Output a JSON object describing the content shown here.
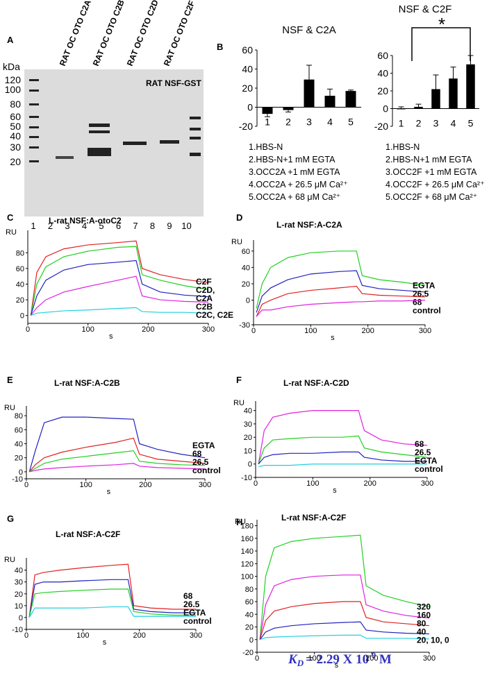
{
  "gel": {
    "panel": "A",
    "unit": "kDa",
    "title": "RAT NSF-GST",
    "lane_labels": [
      "RAT OC OTO C2A",
      "RAT OC OTO C2B",
      "RAT OC OTO C2D",
      "RAT OC OTO C2F"
    ],
    "markers": [
      "120",
      "100",
      "80",
      "60",
      "50",
      "40",
      "30",
      "20"
    ],
    "lanes": [
      "1",
      "2",
      "3",
      "4",
      "5",
      "6",
      "7",
      "8",
      "9",
      "10"
    ]
  },
  "chart_data": [
    {
      "type": "bar",
      "panel": "B",
      "title": "NSF & C2A",
      "categories": [
        "1",
        "2",
        "3",
        "4",
        "5"
      ],
      "values": [
        -7,
        -3,
        29,
        12,
        17
      ],
      "errors": [
        3,
        2,
        15,
        7,
        1
      ],
      "color": "#000000",
      "ylim": [
        -20,
        60
      ],
      "yticks": [
        -20,
        0,
        20,
        40,
        60
      ],
      "notes": [
        "1.HBS-N",
        "2.HBS-N+1 mM EGTA",
        "3.OCC2A +1 mM EGTA",
        "4.OCC2A + 26.5 μM Ca²⁺",
        "5.OCC2A + 68 μM Ca²⁺"
      ]
    },
    {
      "type": "bar",
      "title": "NSF & C2F",
      "categories": [
        "1",
        "2",
        "3",
        "4",
        "5"
      ],
      "values": [
        0,
        2,
        22,
        34,
        50
      ],
      "errors": [
        2,
        3,
        16,
        13,
        10
      ],
      "color": "#000000",
      "ylim": [
        -20,
        60
      ],
      "yticks": [
        -20,
        0,
        20,
        40,
        60
      ],
      "annotation": "*",
      "notes": [
        "1.HBS-N",
        "2.HBS-N+1 mM EGTA",
        "3.OCC2F +1 mM EGTA",
        "4.OCC2F + 26.5 μM Ca²⁺",
        "5.OCC2F + 68 μM Ca²⁺"
      ]
    },
    {
      "type": "line",
      "panel": "C",
      "title": "L-rat NSF:A-otoC2",
      "y_label": "RU",
      "x_label": "s",
      "x": [
        5,
        15,
        30,
        60,
        100,
        150,
        180,
        190,
        220,
        260,
        300
      ],
      "xlim": [
        0,
        300
      ],
      "xticks": [
        0,
        100,
        200,
        300
      ],
      "ylim": [
        -10,
        105
      ],
      "yticks": [
        0,
        20,
        40,
        60,
        80
      ],
      "series": [
        {
          "name": "C2F",
          "color": "#e02020",
          "values": [
            0,
            55,
            75,
            85,
            90,
            93,
            95,
            60,
            52,
            46,
            42
          ]
        },
        {
          "name": "C2D,",
          "color": "#20d020",
          "values": [
            0,
            40,
            62,
            75,
            82,
            87,
            88,
            52,
            45,
            38,
            33
          ]
        },
        {
          "name": "C2A",
          "color": "#2020c0",
          "values": [
            0,
            25,
            45,
            58,
            65,
            68,
            70,
            40,
            30,
            26,
            24
          ]
        },
        {
          "name": "C2B",
          "color": "#e020e0",
          "values": [
            0,
            10,
            20,
            30,
            37,
            45,
            50,
            25,
            20,
            18,
            17
          ]
        },
        {
          "name": "C2C, C2E",
          "color": "#20d0e0",
          "values": [
            0,
            3,
            4,
            6,
            7,
            9,
            10,
            5,
            4,
            4,
            3
          ]
        }
      ]
    },
    {
      "type": "line",
      "panel": "D",
      "title": "L-rat NSF:A-C2A",
      "y_label": "RU",
      "x_label": "s",
      "x": [
        5,
        15,
        30,
        60,
        100,
        150,
        180,
        190,
        220,
        260,
        300
      ],
      "xlim": [
        0,
        300
      ],
      "xticks": [
        0,
        100,
        200,
        300
      ],
      "ylim": [
        -30,
        70
      ],
      "yticks": [
        -30,
        0,
        20,
        40,
        60
      ],
      "series": [
        {
          "name": "EGTA",
          "color": "#20d020",
          "values": [
            -10,
            20,
            40,
            52,
            58,
            60,
            60,
            30,
            25,
            22,
            18
          ]
        },
        {
          "name": "26.5",
          "color": "#2020c0",
          "values": [
            -15,
            5,
            15,
            25,
            32,
            35,
            36,
            18,
            14,
            12,
            10
          ]
        },
        {
          "name": "68",
          "color": "#e02020",
          "values": [
            -20,
            -5,
            0,
            8,
            12,
            15,
            17,
            8,
            6,
            5,
            4
          ]
        },
        {
          "name": "control",
          "color": "#e020e0",
          "values": [
            -20,
            -12,
            -12,
            -8,
            -5,
            -3,
            -2,
            -2,
            -1,
            -1,
            0
          ]
        }
      ]
    },
    {
      "type": "line",
      "panel": "E",
      "title": "L-rat NSF:A-C2B",
      "y_label": "RU",
      "x_label": "s",
      "x": [
        5,
        15,
        30,
        60,
        100,
        150,
        180,
        190,
        220,
        260,
        300
      ],
      "xlim": [
        0,
        300
      ],
      "xticks": [
        0,
        100,
        200,
        300
      ],
      "ylim": [
        -10,
        90
      ],
      "yticks": [
        -10,
        0,
        20,
        40,
        60,
        80
      ],
      "series": [
        {
          "name": "EGTA",
          "color": "#2020c0",
          "values": [
            0,
            30,
            70,
            78,
            78,
            76,
            75,
            40,
            32,
            25,
            20
          ]
        },
        {
          "name": "68",
          "color": "#e02020",
          "values": [
            0,
            10,
            20,
            28,
            35,
            42,
            48,
            25,
            18,
            15,
            12
          ]
        },
        {
          "name": "26.5",
          "color": "#20d020",
          "values": [
            0,
            5,
            12,
            18,
            22,
            27,
            30,
            15,
            12,
            10,
            9
          ]
        },
        {
          "name": "control",
          "color": "#e020e0",
          "values": [
            0,
            2,
            4,
            6,
            8,
            10,
            12,
            8,
            6,
            5,
            4
          ]
        }
      ]
    },
    {
      "type": "line",
      "panel": "F",
      "title": "L-rat NSF:A-C2D",
      "y_label": "RU",
      "x_label": "s",
      "x": [
        5,
        15,
        30,
        60,
        100,
        150,
        180,
        190,
        220,
        260,
        300
      ],
      "xlim": [
        0,
        300
      ],
      "xticks": [
        0,
        100,
        200,
        300
      ],
      "ylim": [
        -10,
        45
      ],
      "yticks": [
        -10,
        0,
        10,
        20,
        30,
        40
      ],
      "series": [
        {
          "name": "68",
          "color": "#e020e0",
          "values": [
            0,
            25,
            35,
            38,
            40,
            40,
            40,
            25,
            18,
            15,
            14
          ]
        },
        {
          "name": "26.5",
          "color": "#20d020",
          "values": [
            0,
            12,
            18,
            19,
            20,
            20,
            21,
            12,
            9,
            7,
            5
          ]
        },
        {
          "name": "EGTA",
          "color": "#2020c0",
          "values": [
            0,
            5,
            7,
            8,
            8,
            9,
            9,
            5,
            3,
            2,
            2
          ]
        },
        {
          "name": "control",
          "color": "#20d0e0",
          "values": [
            -2,
            -1,
            -1,
            -1,
            0,
            0,
            0,
            0,
            0,
            0,
            0
          ]
        }
      ]
    },
    {
      "type": "line",
      "panel": "G",
      "title": "L-rat NSF:A-C2F",
      "y_label": "RU",
      "x_label": "s",
      "x": [
        5,
        15,
        30,
        60,
        100,
        150,
        180,
        190,
        220,
        260,
        300
      ],
      "xlim": [
        0,
        300
      ],
      "xticks": [
        0,
        100,
        200,
        300
      ],
      "ylim": [
        -10,
        48
      ],
      "yticks": [
        -10,
        0,
        10,
        20,
        30,
        40
      ],
      "series": [
        {
          "name": "68",
          "color": "#e02020",
          "values": [
            0,
            36,
            38,
            40,
            42,
            44,
            45,
            10,
            8,
            7,
            7
          ]
        },
        {
          "name": "26.5",
          "color": "#2020c0",
          "values": [
            0,
            28,
            30,
            30,
            31,
            32,
            32,
            7,
            5,
            4,
            4
          ]
        },
        {
          "name": "EGTA",
          "color": "#20d020",
          "values": [
            0,
            20,
            21,
            22,
            23,
            24,
            24,
            5,
            3,
            2,
            2
          ]
        },
        {
          "name": "control",
          "color": "#20d0e0",
          "values": [
            0,
            8,
            8,
            8,
            8,
            9,
            9,
            1,
            1,
            1,
            1
          ]
        }
      ]
    },
    {
      "type": "line",
      "panel": "H",
      "title": "L-rat NSF:A-C2F",
      "y_label": "RU",
      "x_label": "s",
      "x": [
        5,
        15,
        30,
        60,
        100,
        150,
        180,
        190,
        220,
        260,
        300
      ],
      "xlim": [
        0,
        300
      ],
      "xticks": [
        0,
        100,
        200,
        300
      ],
      "ylim": [
        -20,
        185
      ],
      "yticks": [
        -20,
        0,
        20,
        40,
        60,
        80,
        100,
        120,
        140,
        160,
        180
      ],
      "series": [
        {
          "name": "320",
          "color": "#20d020",
          "values": [
            0,
            100,
            145,
            155,
            160,
            163,
            165,
            85,
            70,
            60,
            52
          ]
        },
        {
          "name": "160",
          "color": "#e020e0",
          "values": [
            0,
            55,
            85,
            95,
            100,
            102,
            102,
            55,
            45,
            38,
            34
          ]
        },
        {
          "name": "80",
          "color": "#e02020",
          "values": [
            0,
            30,
            45,
            52,
            57,
            60,
            60,
            35,
            28,
            25,
            22
          ]
        },
        {
          "name": "40",
          "color": "#2020c0",
          "values": [
            0,
            12,
            18,
            22,
            25,
            27,
            28,
            15,
            12,
            10,
            9
          ]
        },
        {
          "name": "20, 10, 0",
          "color": "#20d0e0",
          "values": [
            0,
            3,
            4,
            5,
            6,
            7,
            7,
            2,
            2,
            2,
            1
          ]
        }
      ]
    }
  ],
  "footer": {
    "symbol": "K",
    "subscript": "D",
    "text": "= 2.29 X 10",
    "exponent": "-9",
    "unit": " M"
  }
}
